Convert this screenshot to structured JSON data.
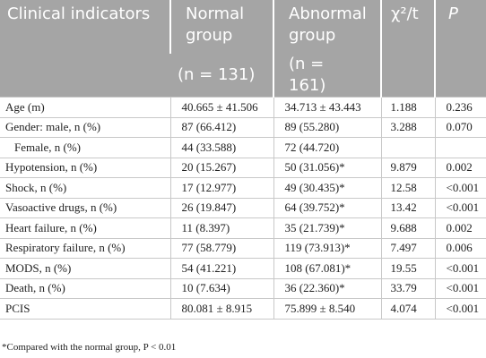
{
  "table": {
    "header": {
      "columns": [
        "Clinical indicators",
        "Normal group",
        "Abnormal group",
        "χ²/t",
        "P"
      ],
      "subheader": [
        "(n = 131)",
        "(n = 161)"
      ]
    },
    "rows": [
      [
        "Age (m)",
        "40.665 ± 41.506",
        "34.713 ± 43.443",
        "1.188",
        "0.236"
      ],
      [
        "Gender: male, n (%)",
        "87 (66.412)",
        "89 (55.280)",
        "3.288",
        "0.070"
      ],
      [
        "Female, n (%)",
        "44 (33.588)",
        "72 (44.720)"
      ],
      [
        "Hypotension, n (%)",
        "20 (15.267)",
        "50 (31.056)*",
        "9.879",
        "0.002"
      ],
      [
        "Shock, n (%)",
        "17 (12.977)",
        "49 (30.435)*",
        "12.58",
        "<0.001"
      ],
      [
        "Vasoactive drugs, n (%)",
        "26 (19.847)",
        "64 (39.752)*",
        "13.42",
        "<0.001"
      ],
      [
        "Heart failure, n (%)",
        "11 (8.397)",
        "35 (21.739)*",
        "9.688",
        "0.002"
      ],
      [
        "Respiratory failure, n (%)",
        "77 (58.779)",
        "119 (73.913)*",
        "7.497",
        "0.006"
      ],
      [
        "MODS, n (%)",
        "54 (41.221)",
        "108 (67.081)*",
        "19.55",
        "<0.001"
      ],
      [
        "Death, n (%)",
        "10 (7.634)",
        "36 (22.360)*",
        "33.79",
        "<0.001"
      ],
      [
        "PCIS",
        "80.081 ± 8.915",
        "75.899 ± 8.540",
        "4.074",
        "<0.001"
      ]
    ],
    "footnote": "*Compared with the normal group, P < 0.01"
  }
}
